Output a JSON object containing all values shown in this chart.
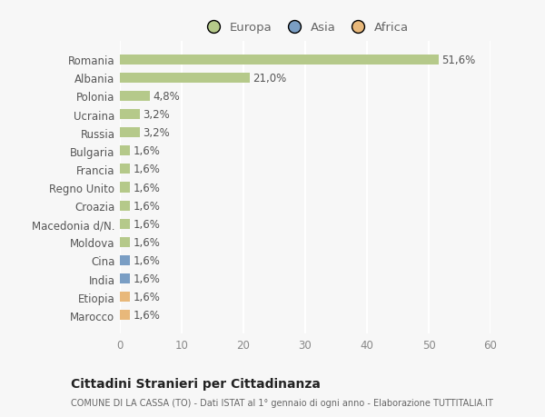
{
  "categories": [
    "Marocco",
    "Etiopia",
    "India",
    "Cina",
    "Moldova",
    "Macedonia d/N.",
    "Croazia",
    "Regno Unito",
    "Francia",
    "Bulgaria",
    "Russia",
    "Ucraina",
    "Polonia",
    "Albania",
    "Romania"
  ],
  "values": [
    1.6,
    1.6,
    1.6,
    1.6,
    1.6,
    1.6,
    1.6,
    1.6,
    1.6,
    1.6,
    3.2,
    3.2,
    4.8,
    21.0,
    51.6
  ],
  "colors": [
    "#e8b87a",
    "#e8b87a",
    "#7a9ec4",
    "#7a9ec4",
    "#b5c98a",
    "#b5c98a",
    "#b5c98a",
    "#b5c98a",
    "#b5c98a",
    "#b5c98a",
    "#b5c98a",
    "#b5c98a",
    "#b5c98a",
    "#b5c98a",
    "#b5c98a"
  ],
  "labels": [
    "1,6%",
    "1,6%",
    "1,6%",
    "1,6%",
    "1,6%",
    "1,6%",
    "1,6%",
    "1,6%",
    "1,6%",
    "1,6%",
    "3,2%",
    "3,2%",
    "4,8%",
    "21,0%",
    "51,6%"
  ],
  "legend": [
    {
      "label": "Europa",
      "color": "#b5c98a"
    },
    {
      "label": "Asia",
      "color": "#7a9ec4"
    },
    {
      "label": "Africa",
      "color": "#e8b87a"
    }
  ],
  "xlim": [
    0,
    60
  ],
  "xticks": [
    0,
    10,
    20,
    30,
    40,
    50,
    60
  ],
  "title": "Cittadini Stranieri per Cittadinanza",
  "subtitle": "COMUNE DI LA CASSA (TO) - Dati ISTAT al 1° gennaio di ogni anno - Elaborazione TUTTITALIA.IT",
  "bg_color": "#f7f7f7",
  "plot_bg_color": "#f7f7f7",
  "bar_height": 0.55,
  "grid_color": "#ffffff",
  "label_fontsize": 8.5,
  "tick_fontsize": 8.5,
  "ylabel_color": "#666666",
  "xlabel_color": "#888888"
}
